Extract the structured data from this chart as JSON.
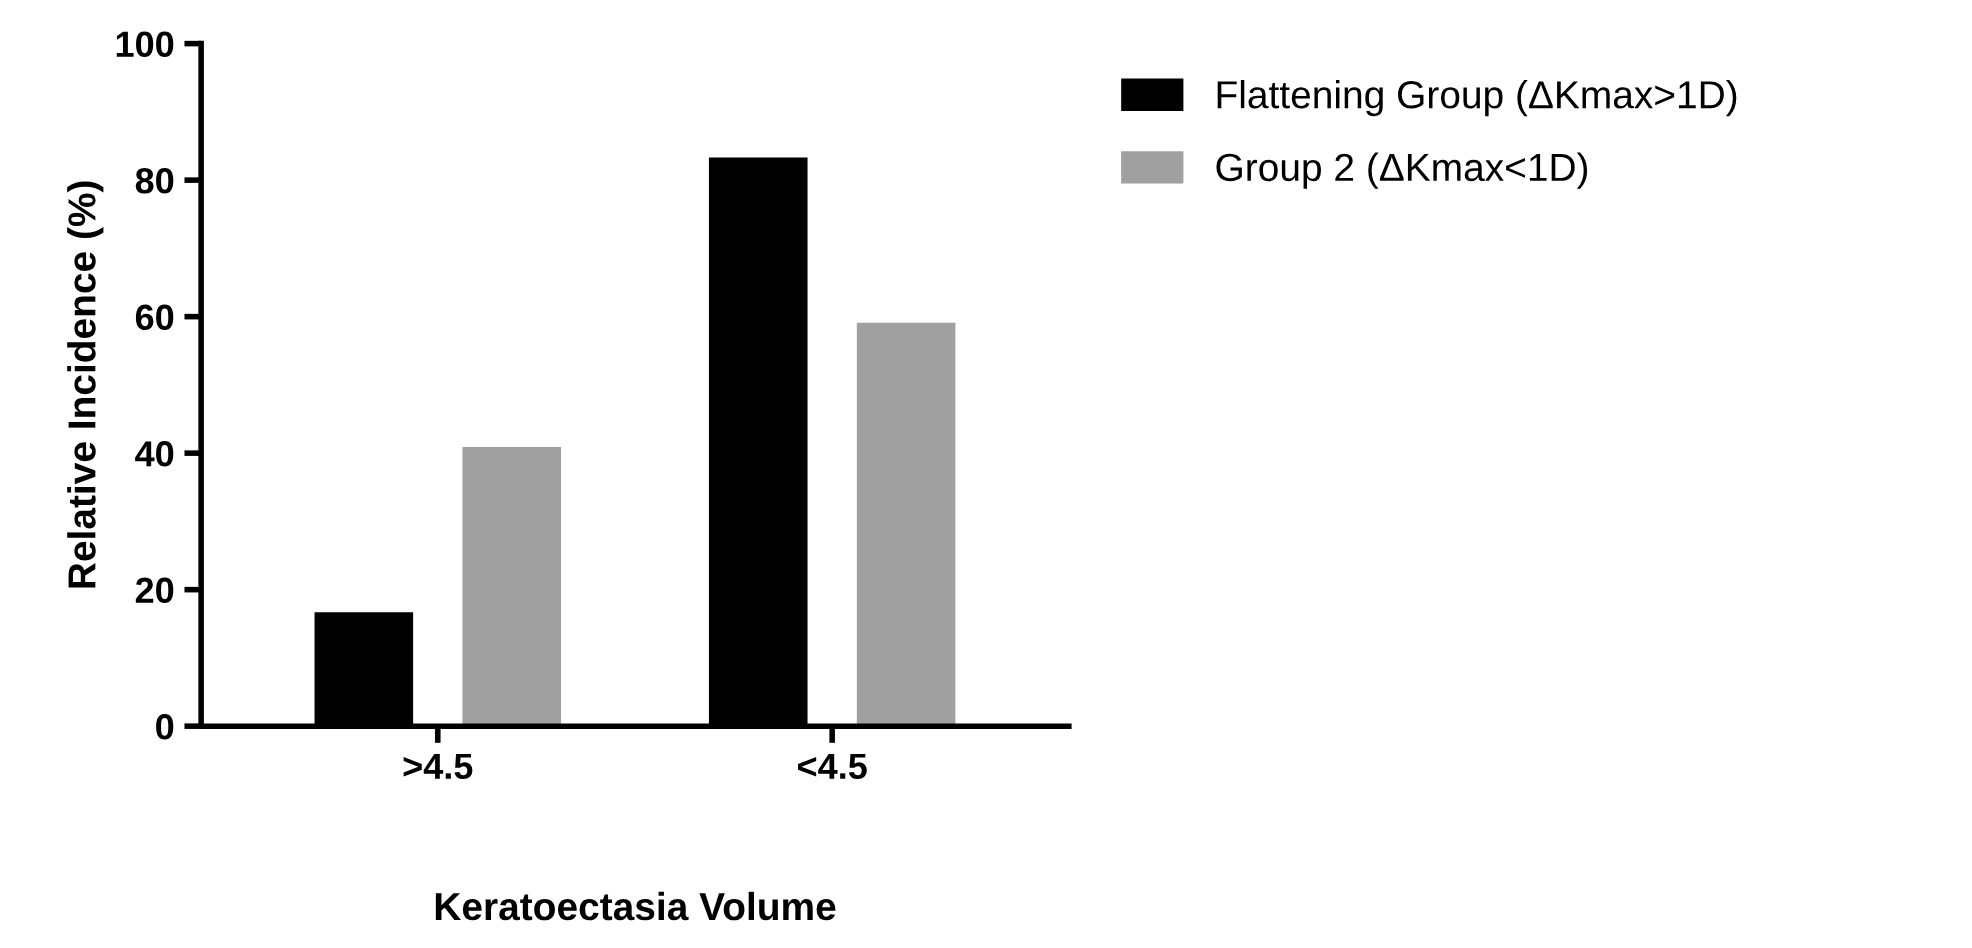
{
  "chart_data": {
    "type": "bar",
    "xlabel": "Keratoectasia Volume",
    "ylabel": "Relative Incidence (%)",
    "categories": [
      ">4.5",
      "<4.5"
    ],
    "series": [
      {
        "name": "Flattening Group (ΔKmax>1D)",
        "color": "#000000",
        "values": [
          16.7,
          83.3
        ]
      },
      {
        "name": "Group 2 (ΔKmax<1D)",
        "color": "#a0a0a0",
        "values": [
          40.9,
          59.1
        ]
      }
    ],
    "ylim": [
      0,
      100
    ],
    "yticks": [
      0,
      20,
      40,
      60,
      80,
      100
    ],
    "legend": "top right",
    "grid": false
  }
}
